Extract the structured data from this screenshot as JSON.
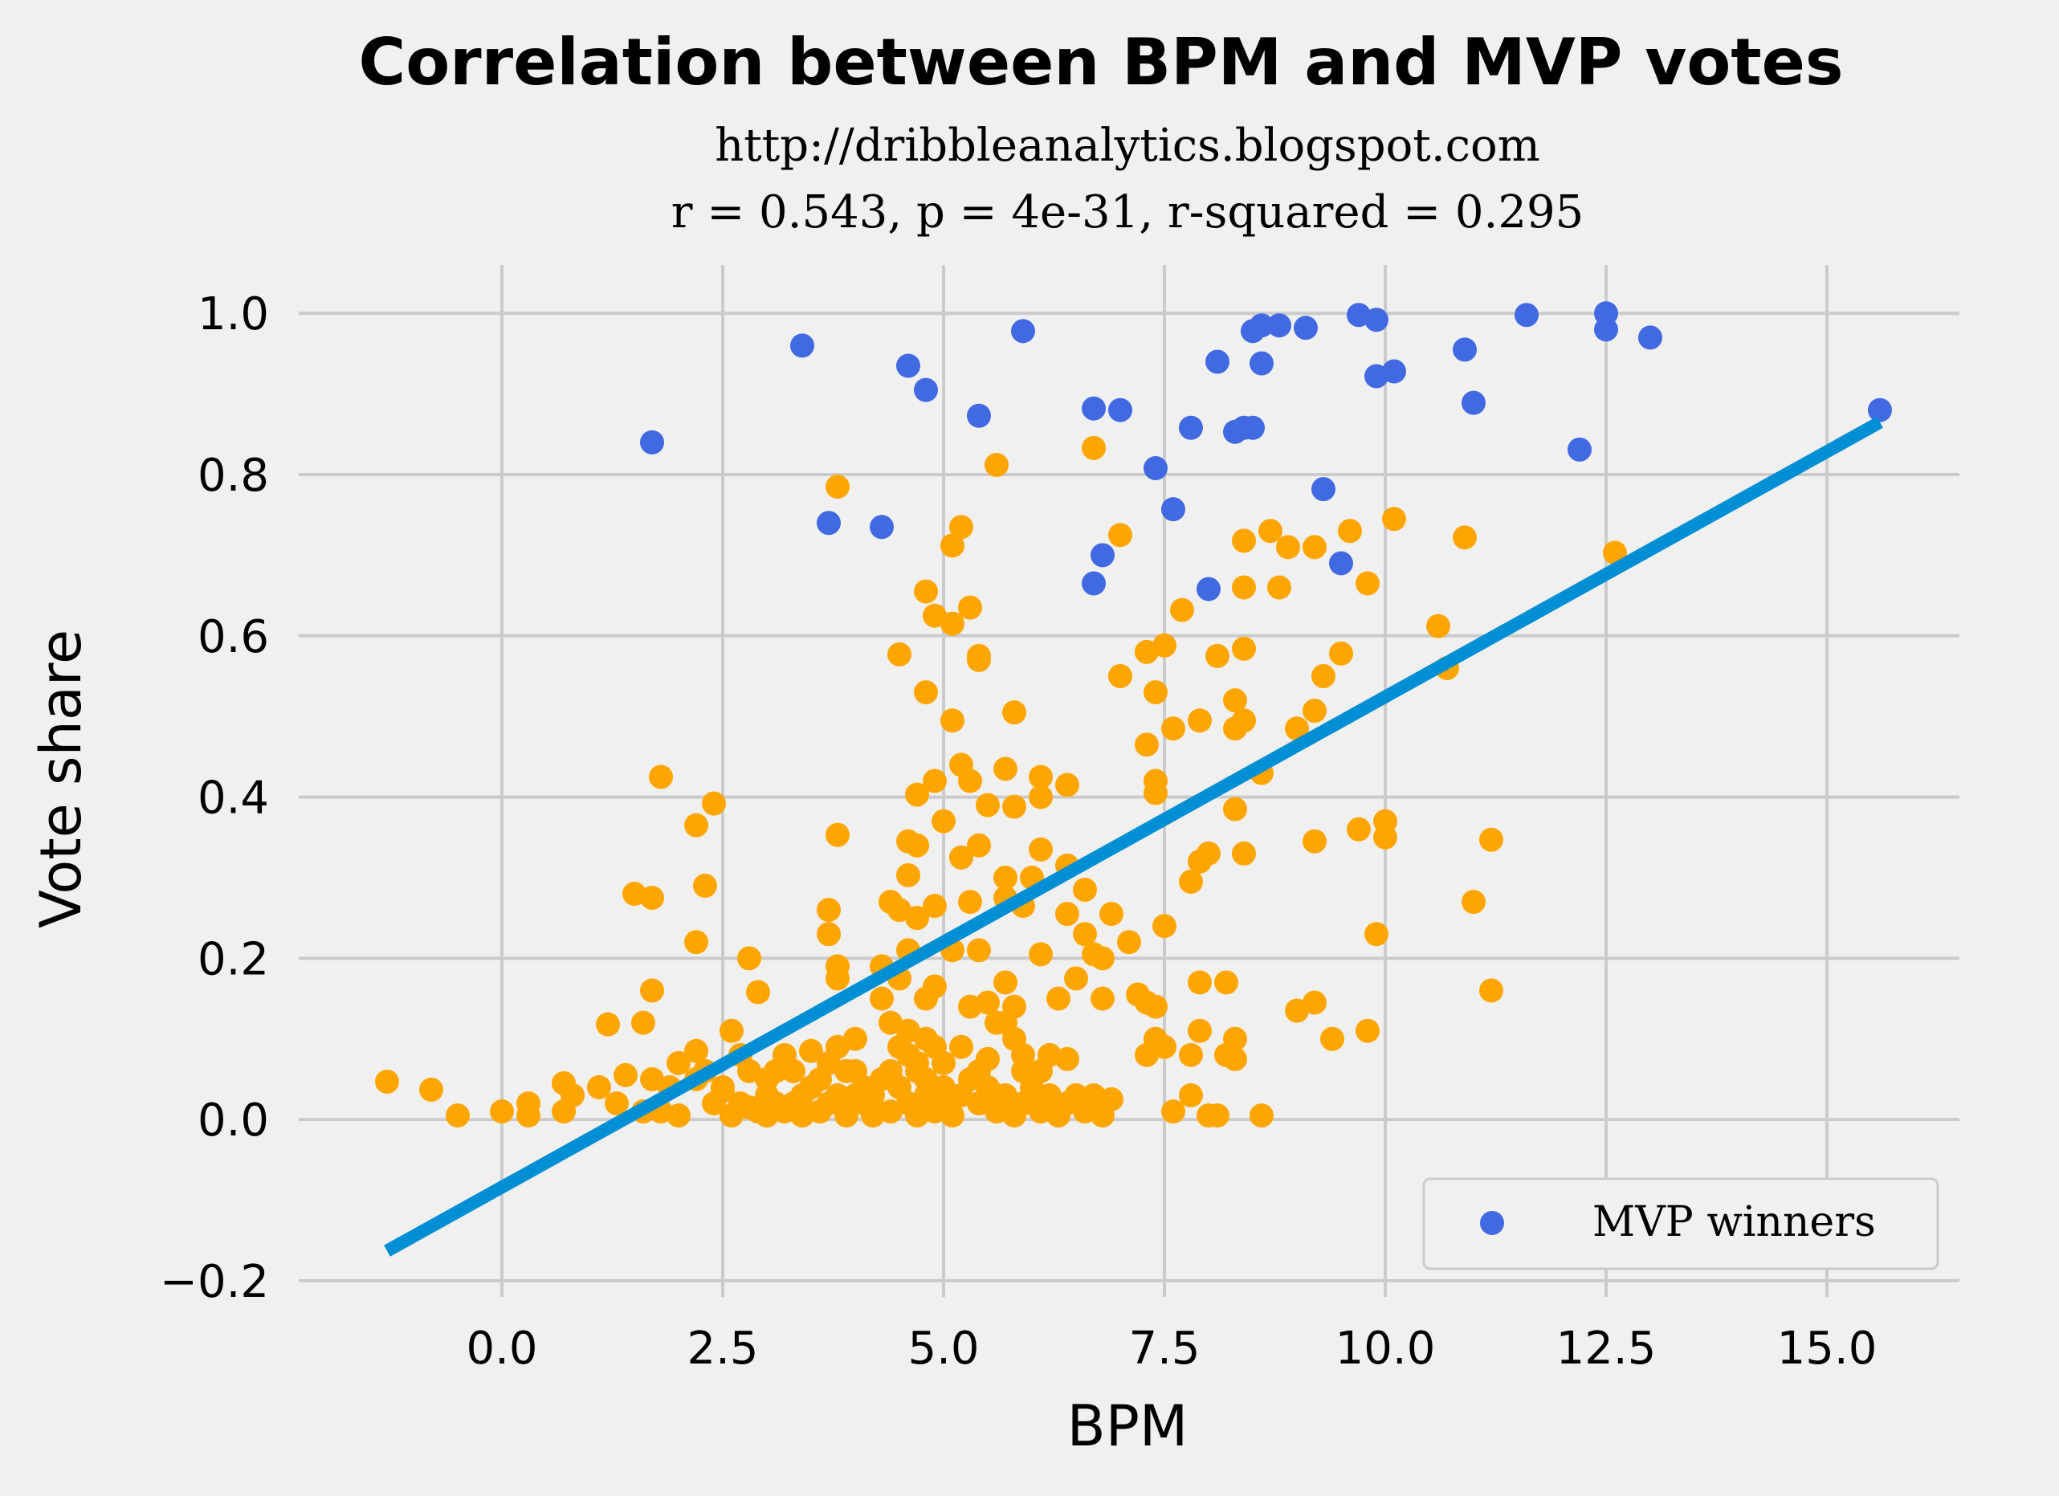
{
  "chart_data": {
    "type": "scatter",
    "title": "Correlation between BPM and MVP votes",
    "subtitle_lines": [
      "http://dribbleanalytics.blogspot.com",
      "r = 0.543, p = 4e-31, r-squared = 0.295"
    ],
    "xlabel": "BPM",
    "ylabel": "Vote share",
    "xlim": [
      -2.3,
      16.5
    ],
    "ylim": [
      -0.22,
      1.06
    ],
    "x_ticks": [
      0.0,
      2.5,
      5.0,
      7.5,
      10.0,
      12.5,
      15.0
    ],
    "x_tick_labels": [
      "0.0",
      "2.5",
      "5.0",
      "7.5",
      "10.0",
      "12.5",
      "15.0"
    ],
    "y_ticks": [
      -0.2,
      0.0,
      0.2,
      0.4,
      0.6,
      0.8,
      1.0
    ],
    "y_tick_labels": [
      "−0.2",
      "0.0",
      "0.2",
      "0.4",
      "0.6",
      "0.8",
      "1.0"
    ],
    "grid": true,
    "legend": {
      "position": "lower-right",
      "entries": [
        {
          "label": "MVP winners",
          "color": "#4169e1"
        }
      ]
    },
    "colors": {
      "mvp": "#4169e1",
      "others": "#ffa500",
      "fit_line": "#008fd5",
      "background": "#f0f0f0",
      "grid": "#cbcbcb"
    },
    "fit_line": {
      "x": [
        -1.3,
        15.6
      ],
      "y": [
        -0.163,
        0.865
      ]
    },
    "series": [
      {
        "name": "MVP winners",
        "color": "#4169e1",
        "points": [
          [
            1.7,
            0.84
          ],
          [
            3.4,
            0.96
          ],
          [
            3.7,
            0.74
          ],
          [
            4.3,
            0.735
          ],
          [
            4.6,
            0.935
          ],
          [
            4.8,
            0.905
          ],
          [
            5.4,
            0.873
          ],
          [
            5.9,
            0.978
          ],
          [
            6.7,
            0.882
          ],
          [
            7.0,
            0.88
          ],
          [
            6.8,
            0.7
          ],
          [
            6.7,
            0.665
          ],
          [
            7.4,
            0.808
          ],
          [
            7.6,
            0.757
          ],
          [
            7.8,
            0.858
          ],
          [
            8.0,
            0.658
          ],
          [
            8.1,
            0.94
          ],
          [
            8.3,
            0.853
          ],
          [
            8.4,
            0.858
          ],
          [
            8.5,
            0.858
          ],
          [
            8.5,
            0.978
          ],
          [
            8.6,
            0.985
          ],
          [
            8.6,
            0.938
          ],
          [
            8.8,
            0.985
          ],
          [
            9.1,
            0.982
          ],
          [
            9.3,
            0.782
          ],
          [
            9.5,
            0.69
          ],
          [
            9.7,
            0.998
          ],
          [
            9.9,
            0.992
          ],
          [
            9.9,
            0.922
          ],
          [
            10.1,
            0.928
          ],
          [
            10.9,
            0.955
          ],
          [
            11.0,
            0.889
          ],
          [
            11.6,
            0.998
          ],
          [
            12.2,
            0.831
          ],
          [
            12.5,
            1.0
          ],
          [
            12.5,
            0.98
          ],
          [
            13.0,
            0.97
          ],
          [
            15.6,
            0.88
          ]
        ]
      },
      {
        "name": "",
        "color": "#ffa500",
        "points": [
          [
            -1.3,
            0.047
          ],
          [
            -0.8,
            0.037
          ],
          [
            -0.5,
            0.005
          ],
          [
            0.0,
            0.01
          ],
          [
            0.3,
            0.02
          ],
          [
            0.3,
            0.005
          ],
          [
            0.7,
            0.045
          ],
          [
            0.7,
            0.01
          ],
          [
            0.8,
            0.03
          ],
          [
            1.1,
            0.04
          ],
          [
            1.2,
            0.118
          ],
          [
            1.3,
            0.02
          ],
          [
            1.4,
            0.055
          ],
          [
            1.5,
            0.28
          ],
          [
            1.6,
            0.12
          ],
          [
            1.6,
            0.01
          ],
          [
            1.7,
            0.275
          ],
          [
            1.7,
            0.16
          ],
          [
            1.7,
            0.05
          ],
          [
            1.8,
            0.425
          ],
          [
            1.8,
            0.01
          ],
          [
            1.9,
            0.04
          ],
          [
            2.0,
            0.07
          ],
          [
            2.0,
            0.005
          ],
          [
            2.2,
            0.365
          ],
          [
            2.2,
            0.22
          ],
          [
            2.2,
            0.085
          ],
          [
            2.2,
            0.05
          ],
          [
            2.3,
            0.29
          ],
          [
            2.3,
            0.06
          ],
          [
            2.4,
            0.392
          ],
          [
            2.4,
            0.02
          ],
          [
            2.5,
            0.035
          ],
          [
            2.6,
            0.11
          ],
          [
            2.7,
            0.02
          ],
          [
            2.8,
            0.2
          ],
          [
            2.8,
            0.06
          ],
          [
            2.9,
            0.158
          ],
          [
            2.9,
            0.01
          ],
          [
            3.0,
            0.03
          ],
          [
            3.0,
            0.005
          ],
          [
            3.1,
            0.06
          ],
          [
            3.2,
            0.08
          ],
          [
            3.3,
            0.02
          ],
          [
            3.4,
            0.005
          ],
          [
            3.5,
            0.04
          ],
          [
            3.5,
            0.085
          ],
          [
            3.6,
            0.01
          ],
          [
            3.7,
            0.26
          ],
          [
            3.7,
            0.23
          ],
          [
            3.7,
            0.07
          ],
          [
            3.7,
            0.02
          ],
          [
            3.8,
            0.785
          ],
          [
            3.8,
            0.353
          ],
          [
            3.8,
            0.19
          ],
          [
            3.8,
            0.175
          ],
          [
            3.8,
            0.09
          ],
          [
            3.9,
            0.06
          ],
          [
            4.0,
            0.1
          ],
          [
            4.0,
            0.03
          ],
          [
            4.1,
            0.04
          ],
          [
            4.2,
            0.005
          ],
          [
            4.3,
            0.19
          ],
          [
            4.3,
            0.15
          ],
          [
            4.4,
            0.27
          ],
          [
            4.4,
            0.12
          ],
          [
            4.4,
            0.06
          ],
          [
            4.5,
            0.577
          ],
          [
            4.5,
            0.26
          ],
          [
            4.5,
            0.175
          ],
          [
            4.5,
            0.09
          ],
          [
            4.6,
            0.345
          ],
          [
            4.6,
            0.303
          ],
          [
            4.6,
            0.21
          ],
          [
            4.6,
            0.11
          ],
          [
            4.6,
            0.08
          ],
          [
            4.7,
            0.403
          ],
          [
            4.7,
            0.34
          ],
          [
            4.7,
            0.25
          ],
          [
            4.7,
            0.005
          ],
          [
            4.8,
            0.655
          ],
          [
            4.8,
            0.53
          ],
          [
            4.8,
            0.15
          ],
          [
            4.8,
            0.1
          ],
          [
            4.8,
            0.05
          ],
          [
            4.9,
            0.625
          ],
          [
            4.9,
            0.42
          ],
          [
            4.9,
            0.265
          ],
          [
            4.9,
            0.165
          ],
          [
            5.0,
            0.37
          ],
          [
            5.0,
            0.07
          ],
          [
            5.0,
            0.04
          ],
          [
            5.1,
            0.712
          ],
          [
            5.1,
            0.615
          ],
          [
            5.1,
            0.495
          ],
          [
            5.1,
            0.21
          ],
          [
            5.2,
            0.735
          ],
          [
            5.2,
            0.44
          ],
          [
            5.2,
            0.325
          ],
          [
            5.2,
            0.09
          ],
          [
            5.3,
            0.635
          ],
          [
            5.3,
            0.42
          ],
          [
            5.3,
            0.27
          ],
          [
            5.3,
            0.14
          ],
          [
            5.4,
            0.575
          ],
          [
            5.4,
            0.57
          ],
          [
            5.4,
            0.34
          ],
          [
            5.4,
            0.21
          ],
          [
            5.4,
            0.06
          ],
          [
            5.5,
            0.39
          ],
          [
            5.5,
            0.145
          ],
          [
            5.6,
            0.812
          ],
          [
            5.6,
            0.12
          ],
          [
            5.6,
            0.03
          ],
          [
            5.7,
            0.435
          ],
          [
            5.7,
            0.3
          ],
          [
            5.7,
            0.275
          ],
          [
            5.7,
            0.17
          ],
          [
            5.8,
            0.505
          ],
          [
            5.8,
            0.388
          ],
          [
            5.8,
            0.14
          ],
          [
            5.8,
            0.1
          ],
          [
            5.9,
            0.265
          ],
          [
            5.9,
            0.06
          ],
          [
            6.0,
            0.3
          ],
          [
            6.0,
            0.02
          ],
          [
            6.1,
            0.425
          ],
          [
            6.1,
            0.4
          ],
          [
            6.1,
            0.335
          ],
          [
            6.1,
            0.205
          ],
          [
            6.2,
            0.08
          ],
          [
            6.3,
            0.15
          ],
          [
            6.4,
            0.415
          ],
          [
            6.4,
            0.315
          ],
          [
            6.4,
            0.255
          ],
          [
            6.4,
            0.075
          ],
          [
            6.5,
            0.175
          ],
          [
            6.6,
            0.285
          ],
          [
            6.6,
            0.23
          ],
          [
            6.7,
            0.833
          ],
          [
            6.7,
            0.205
          ],
          [
            6.8,
            0.2
          ],
          [
            6.8,
            0.15
          ],
          [
            6.9,
            0.255
          ],
          [
            7.0,
            0.725
          ],
          [
            7.0,
            0.55
          ],
          [
            7.1,
            0.22
          ],
          [
            7.2,
            0.155
          ],
          [
            7.3,
            0.145
          ],
          [
            7.3,
            0.465
          ],
          [
            7.3,
            0.58
          ],
          [
            7.3,
            0.08
          ],
          [
            7.4,
            0.53
          ],
          [
            7.4,
            0.42
          ],
          [
            7.4,
            0.405
          ],
          [
            7.4,
            0.14
          ],
          [
            7.4,
            0.1
          ],
          [
            7.5,
            0.588
          ],
          [
            7.5,
            0.24
          ],
          [
            7.5,
            0.09
          ],
          [
            7.6,
            0.485
          ],
          [
            7.6,
            0.01
          ],
          [
            7.7,
            0.632
          ],
          [
            7.8,
            0.295
          ],
          [
            7.8,
            0.08
          ],
          [
            7.8,
            0.03
          ],
          [
            7.9,
            0.495
          ],
          [
            7.9,
            0.32
          ],
          [
            7.9,
            0.17
          ],
          [
            7.9,
            0.11
          ],
          [
            8.0,
            0.33
          ],
          [
            8.0,
            0.005
          ],
          [
            8.1,
            0.575
          ],
          [
            8.1,
            0.005
          ],
          [
            8.2,
            0.17
          ],
          [
            8.2,
            0.08
          ],
          [
            8.3,
            0.52
          ],
          [
            8.3,
            0.485
          ],
          [
            8.3,
            0.385
          ],
          [
            8.3,
            0.1
          ],
          [
            8.3,
            0.075
          ],
          [
            8.4,
            0.718
          ],
          [
            8.4,
            0.66
          ],
          [
            8.4,
            0.584
          ],
          [
            8.4,
            0.495
          ],
          [
            8.4,
            0.33
          ],
          [
            8.6,
            0.43
          ],
          [
            8.6,
            0.005
          ],
          [
            8.7,
            0.73
          ],
          [
            8.8,
            0.66
          ],
          [
            8.9,
            0.71
          ],
          [
            9.0,
            0.485
          ],
          [
            9.0,
            0.135
          ],
          [
            9.2,
            0.71
          ],
          [
            9.2,
            0.507
          ],
          [
            9.2,
            0.345
          ],
          [
            9.2,
            0.145
          ],
          [
            9.3,
            0.55
          ],
          [
            9.4,
            0.1
          ],
          [
            9.5,
            0.578
          ],
          [
            9.6,
            0.73
          ],
          [
            9.7,
            0.36
          ],
          [
            9.8,
            0.665
          ],
          [
            9.8,
            0.11
          ],
          [
            9.9,
            0.23
          ],
          [
            10.0,
            0.37
          ],
          [
            10.0,
            0.35
          ],
          [
            10.1,
            0.745
          ],
          [
            10.6,
            0.612
          ],
          [
            10.7,
            0.56
          ],
          [
            10.9,
            0.722
          ],
          [
            11.0,
            0.27
          ],
          [
            11.2,
            0.347
          ],
          [
            11.2,
            0.16
          ],
          [
            12.6,
            0.703
          ],
          [
            2.5,
            0.04
          ],
          [
            2.6,
            0.005
          ],
          [
            2.7,
            0.08
          ],
          [
            2.8,
            0.015
          ],
          [
            3.0,
            0.05
          ],
          [
            3.1,
            0.02
          ],
          [
            3.2,
            0.01
          ],
          [
            3.3,
            0.06
          ],
          [
            3.4,
            0.03
          ],
          [
            3.6,
            0.05
          ],
          [
            3.8,
            0.03
          ],
          [
            3.9,
            0.005
          ],
          [
            4.0,
            0.06
          ],
          [
            4.1,
            0.02
          ],
          [
            4.2,
            0.03
          ],
          [
            4.3,
            0.05
          ],
          [
            4.4,
            0.01
          ],
          [
            4.5,
            0.04
          ],
          [
            4.6,
            0.02
          ],
          [
            4.7,
            0.06
          ],
          [
            4.8,
            0.03
          ],
          [
            4.9,
            0.01
          ],
          [
            5.0,
            0.02
          ],
          [
            5.1,
            0.005
          ],
          [
            5.2,
            0.03
          ],
          [
            5.3,
            0.05
          ],
          [
            5.4,
            0.02
          ],
          [
            5.5,
            0.04
          ],
          [
            5.6,
            0.01
          ],
          [
            5.7,
            0.03
          ],
          [
            5.8,
            0.005
          ],
          [
            5.9,
            0.02
          ],
          [
            6.0,
            0.04
          ],
          [
            6.1,
            0.01
          ],
          [
            6.2,
            0.03
          ],
          [
            6.3,
            0.005
          ],
          [
            6.4,
            0.02
          ],
          [
            6.5,
            0.03
          ],
          [
            6.6,
            0.01
          ],
          [
            6.7,
            0.03
          ],
          [
            6.8,
            0.005
          ],
          [
            6.9,
            0.025
          ],
          [
            5.5,
            0.075
          ],
          [
            5.7,
            0.12
          ],
          [
            5.9,
            0.08
          ],
          [
            6.1,
            0.06
          ],
          [
            4.9,
            0.09
          ],
          [
            4.7,
            0.07
          ]
        ]
      }
    ]
  }
}
